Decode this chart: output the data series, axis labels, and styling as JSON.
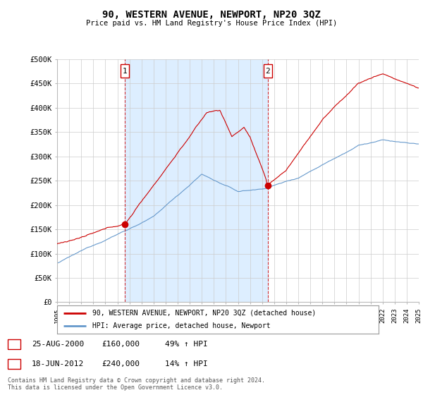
{
  "title": "90, WESTERN AVENUE, NEWPORT, NP20 3QZ",
  "subtitle": "Price paid vs. HM Land Registry's House Price Index (HPI)",
  "ylim": [
    0,
    500000
  ],
  "yticks": [
    0,
    50000,
    100000,
    150000,
    200000,
    250000,
    300000,
    350000,
    400000,
    450000,
    500000
  ],
  "ytick_labels": [
    "£0",
    "£50K",
    "£100K",
    "£150K",
    "£200K",
    "£250K",
    "£300K",
    "£350K",
    "£400K",
    "£450K",
    "£500K"
  ],
  "red_line_color": "#cc0000",
  "blue_line_color": "#6699cc",
  "blue_fill_color": "#ddeeff",
  "legend_red": "90, WESTERN AVENUE, NEWPORT, NP20 3QZ (detached house)",
  "legend_blue": "HPI: Average price, detached house, Newport",
  "sale1_date": "25-AUG-2000",
  "sale1_price": "£160,000",
  "sale1_hpi": "49% ↑ HPI",
  "sale2_date": "18-JUN-2012",
  "sale2_price": "£240,000",
  "sale2_hpi": "14% ↑ HPI",
  "footnote": "Contains HM Land Registry data © Crown copyright and database right 2024.\nThis data is licensed under the Open Government Licence v3.0.",
  "background_color": "#ffffff",
  "grid_color": "#cccccc",
  "x_start_year": 1995,
  "x_end_year": 2025
}
